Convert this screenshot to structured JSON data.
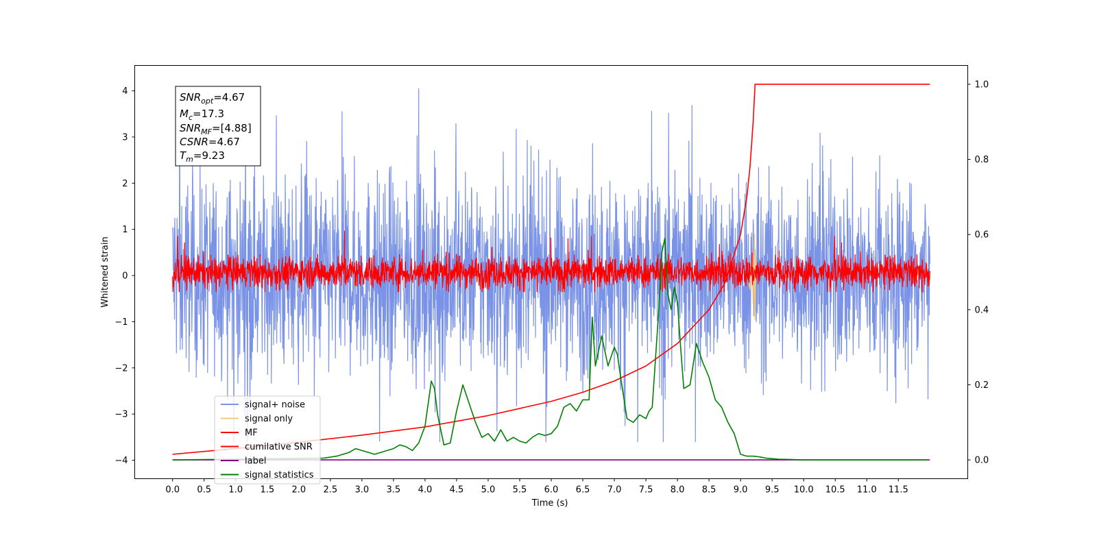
{
  "chart_data": {
    "type": "line",
    "xlabel": "Time (s)",
    "ylabel": "Whitened strain",
    "title": "",
    "xlim": [
      -0.6,
      12.6
    ],
    "ylim": [
      -4.4,
      4.55
    ],
    "y2lim": [
      -0.05,
      1.05
    ],
    "grid": false,
    "legend_position": "bottom-left",
    "x_ticks": [
      "0.0",
      "0.5",
      "1.0",
      "1.5",
      "2.0",
      "2.5",
      "3.0",
      "3.5",
      "4.0",
      "4.5",
      "5.0",
      "5.5",
      "6.0",
      "6.5",
      "7.0",
      "7.5",
      "8.0",
      "8.5",
      "9.0",
      "9.5",
      "10.0",
      "10.5",
      "11.0",
      "11.5"
    ],
    "y_ticks": [
      "4",
      "3",
      "2",
      "1",
      "0",
      "−1",
      "−2",
      "−3",
      "−4"
    ],
    "y2_ticks": [
      "1.0",
      "0.8",
      "0.6",
      "0.4",
      "0.2",
      "0.0"
    ],
    "stats": {
      "snr_opt": {
        "base": "SNR",
        "sub": "opt",
        "value": "=4.67"
      },
      "mc": {
        "base": "M",
        "sub": "c",
        "value": "=17.3"
      },
      "snr_mf": {
        "base": "SNR",
        "sub": "MF",
        "value": "=[4.88]"
      },
      "csnr": {
        "base": "CSNR",
        "sub": "",
        "value": "=4.67"
      },
      "tm": {
        "base": "T",
        "sub": "m",
        "value": "=9.23"
      }
    },
    "series": [
      {
        "name": "signal+ noise",
        "color": "#7a93e6",
        "axis": "left",
        "style": "noise",
        "x_range": [
          0,
          12
        ],
        "envelope": {
          "typical_upper": 2.3,
          "typical_lower": -2.3,
          "max": 4.2,
          "min": -3.6
        }
      },
      {
        "name": "signal only",
        "color": "#f5c97a",
        "axis": "left",
        "style": "burst",
        "x": [
          9.1,
          9.15,
          9.18,
          9.2,
          9.22,
          9.23,
          9.24,
          9.25
        ],
        "y": [
          0.1,
          -0.3,
          0.5,
          -0.6,
          0.9,
          -0.95,
          0.4,
          0.0
        ]
      },
      {
        "name": "MF",
        "color": "#ff0000",
        "axis": "left",
        "style": "noise",
        "x_range": [
          0,
          12
        ],
        "envelope": {
          "typical_upper": 0.45,
          "typical_lower": -0.3,
          "max": 1.0,
          "min": -0.35
        }
      },
      {
        "name": "cumilative SNR",
        "color": "#ff0000",
        "axis": "right",
        "style": "line",
        "x": [
          0.0,
          1.0,
          2.0,
          3.0,
          4.0,
          5.0,
          6.0,
          6.5,
          7.0,
          7.5,
          8.0,
          8.5,
          8.75,
          9.0,
          9.1,
          9.15,
          9.2,
          9.23,
          12.0
        ],
        "y": [
          0.015,
          0.03,
          0.047,
          0.066,
          0.088,
          0.118,
          0.156,
          0.18,
          0.21,
          0.25,
          0.31,
          0.4,
          0.47,
          0.6,
          0.7,
          0.78,
          0.9,
          1.0,
          1.0
        ]
      },
      {
        "name": "label",
        "color": "#800080",
        "axis": "right",
        "style": "line",
        "x": [
          0.0,
          12.0
        ],
        "y": [
          0.0,
          0.0
        ]
      },
      {
        "name": "signal statistics",
        "color": "#008000",
        "axis": "right",
        "style": "line",
        "x": [
          0.0,
          1.0,
          2.0,
          2.4,
          2.6,
          2.8,
          2.9,
          3.0,
          3.1,
          3.2,
          3.3,
          3.4,
          3.5,
          3.6,
          3.7,
          3.8,
          3.9,
          4.0,
          4.1,
          4.15,
          4.2,
          4.3,
          4.4,
          4.5,
          4.6,
          4.7,
          4.8,
          4.9,
          5.0,
          5.1,
          5.2,
          5.3,
          5.4,
          5.5,
          5.6,
          5.7,
          5.8,
          5.9,
          6.0,
          6.1,
          6.2,
          6.3,
          6.4,
          6.5,
          6.6,
          6.65,
          6.7,
          6.8,
          6.9,
          7.0,
          7.05,
          7.1,
          7.2,
          7.3,
          7.4,
          7.5,
          7.55,
          7.6,
          7.7,
          7.75,
          7.8,
          7.85,
          7.9,
          7.95,
          8.0,
          8.05,
          8.1,
          8.2,
          8.3,
          8.4,
          8.5,
          8.6,
          8.7,
          8.8,
          8.9,
          9.0,
          9.1,
          9.2,
          9.3,
          9.4,
          9.6,
          10.0,
          10.5,
          11.0,
          11.5,
          11.95
        ],
        "y": [
          0.0,
          0.002,
          0.004,
          0.005,
          0.01,
          0.02,
          0.03,
          0.025,
          0.02,
          0.015,
          0.02,
          0.025,
          0.03,
          0.04,
          0.035,
          0.025,
          0.045,
          0.09,
          0.21,
          0.19,
          0.12,
          0.04,
          0.045,
          0.13,
          0.2,
          0.15,
          0.1,
          0.06,
          0.07,
          0.05,
          0.08,
          0.05,
          0.06,
          0.05,
          0.045,
          0.06,
          0.07,
          0.065,
          0.07,
          0.09,
          0.14,
          0.15,
          0.13,
          0.16,
          0.16,
          0.38,
          0.25,
          0.33,
          0.25,
          0.3,
          0.28,
          0.22,
          0.11,
          0.1,
          0.12,
          0.11,
          0.13,
          0.14,
          0.39,
          0.55,
          0.59,
          0.44,
          0.4,
          0.46,
          0.42,
          0.3,
          0.19,
          0.2,
          0.31,
          0.26,
          0.22,
          0.16,
          0.14,
          0.1,
          0.07,
          0.015,
          0.01,
          0.01,
          0.008,
          0.005,
          0.002,
          0.0,
          0.0,
          0.0,
          0.0,
          0.0
        ]
      }
    ]
  }
}
